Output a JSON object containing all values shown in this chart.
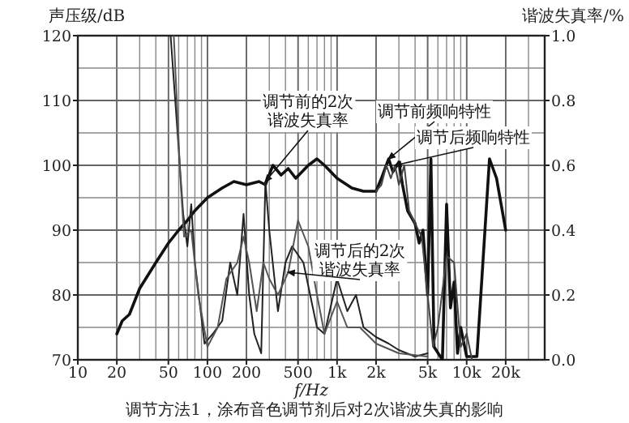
{
  "chart_data": {
    "type": "line",
    "ylabel": "声压级/dB",
    "y2label": "谐波失真率/%",
    "xlabel": "f/Hz",
    "xlim": [
      10,
      40000
    ],
    "xticks": [
      10,
      20,
      50,
      100,
      200,
      500,
      {
        "value": 1000,
        "label": "1k"
      },
      {
        "value": 2000,
        "label": "2k"
      },
      {
        "value": 5000,
        "label": "5k"
      },
      {
        "value": 10000,
        "label": "10k"
      },
      {
        "value": 20000,
        "label": "20k"
      }
    ],
    "ylim": [
      70,
      120
    ],
    "yticks": [
      70,
      80,
      90,
      100,
      110,
      120
    ],
    "y2lim": [
      0,
      1.0
    ],
    "y2ticks": [
      {
        "value": 0,
        "label": "0.0"
      },
      {
        "value": 0.2,
        "label": "0.2"
      },
      {
        "value": 0.4,
        "label": "0.4"
      },
      {
        "value": 0.6,
        "label": "0.6"
      },
      {
        "value": 0.8,
        "label": "0.8"
      },
      {
        "value": 1.0,
        "label": "1.0"
      }
    ],
    "grid": true,
    "log": "x",
    "marker": "none",
    "line_style": "solid",
    "series": [
      {
        "color": "#111111",
        "x": [
          20,
          22,
          25,
          30,
          40,
          50,
          60,
          70,
          80,
          100,
          130,
          160,
          200,
          250,
          280,
          320,
          370,
          420,
          480,
          600,
          700,
          800,
          1000,
          1300,
          1600,
          2000,
          2200,
          2500,
          2700,
          3000,
          3200,
          3500,
          4000,
          4300,
          4600,
          5000,
          5300,
          5600,
          6500,
          7000,
          7500,
          8000,
          8500,
          9000,
          10000,
          12000,
          15000,
          17000,
          20000
        ],
        "values": [
          74,
          76,
          77,
          81,
          85,
          88,
          90,
          91.5,
          93,
          95,
          96.5,
          97.5,
          97,
          97.5,
          97,
          100,
          98.5,
          99.5,
          98,
          100,
          101,
          100,
          98,
          96.5,
          96,
          96,
          98,
          101,
          99,
          100.5,
          97,
          93,
          91,
          88,
          90,
          80,
          101,
          72,
          70,
          94,
          78,
          82,
          71,
          75,
          70.5,
          70.5,
          101,
          98,
          90
        ]
      },
      {
        "color": "#444444",
        "x": [
          2000,
          2200,
          2400,
          2600,
          2800,
          3000,
          3300,
          3600,
          4000,
          4500,
          5000,
          5500,
          6000,
          7000,
          8000,
          9000,
          10000,
          11000
        ],
        "values": [
          96,
          97,
          100,
          98,
          100,
          97,
          100,
          93,
          91,
          89,
          80,
          72,
          75,
          86,
          85,
          72,
          74,
          70
        ]
      },
      {
        "color": "#222222",
        "axis": "y2",
        "x": [
          52,
          60,
          65,
          70,
          75,
          80,
          95,
          110,
          130,
          150,
          170,
          190,
          210,
          230,
          260,
          280,
          300,
          350,
          400,
          450,
          550,
          700,
          800,
          1000,
          1200,
          1400,
          1600,
          2000,
          2500,
          3000,
          4000,
          5000
        ],
        "values": [
          1.0,
          0.65,
          0.45,
          0.35,
          0.48,
          0.3,
          0.05,
          0.08,
          0.12,
          0.3,
          0.2,
          0.45,
          0.2,
          0.08,
          0.02,
          0.55,
          0.4,
          0.15,
          0.3,
          0.35,
          0.3,
          0.1,
          0.08,
          0.25,
          0.15,
          0.2,
          0.1,
          0.07,
          0.05,
          0.03,
          0.01,
          0.02
        ]
      },
      {
        "color": "#555555",
        "axis": "y2",
        "x": [
          55,
          62,
          66,
          75,
          85,
          100,
          120,
          140,
          170,
          190,
          210,
          240,
          270,
          300,
          350,
          420,
          500,
          600,
          700,
          800,
          1000,
          1200,
          1500,
          2000,
          3000,
          5000
        ],
        "values": [
          1.0,
          0.55,
          0.38,
          0.4,
          0.2,
          0.04,
          0.1,
          0.25,
          0.3,
          0.38,
          0.3,
          0.15,
          0.3,
          0.25,
          0.2,
          0.27,
          0.43,
          0.35,
          0.2,
          0.08,
          0.18,
          0.1,
          0.1,
          0.05,
          0.02,
          0.01
        ]
      }
    ],
    "annotations": [
      {
        "text": "调节前的2次谐波失真率",
        "x": 280,
        "y": 97.5
      },
      {
        "text": "调节后的2次谐波失真率",
        "x": 420,
        "y": 83.5
      },
      {
        "text": "调节前频响特性",
        "x": 2500,
        "y": 101
      },
      {
        "text": "调节后频响特性",
        "x": 2800,
        "y": 100
      },
      "调节方法1，涂布音色调节剂后对2次谐波失真的影响"
    ]
  }
}
